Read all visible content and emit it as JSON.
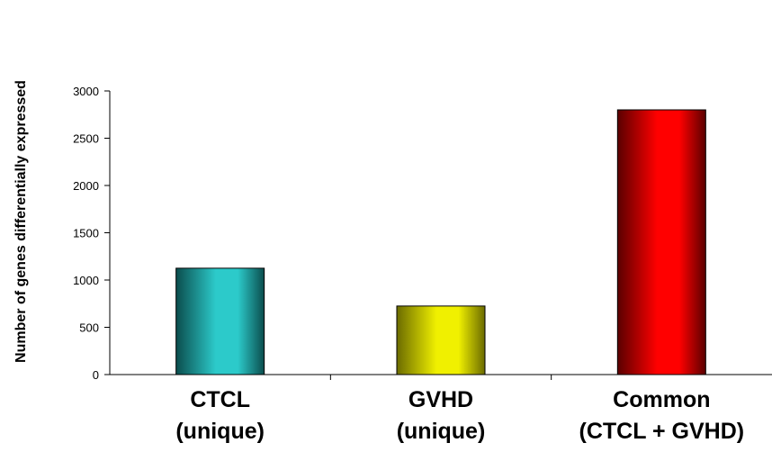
{
  "chart_data": {
    "type": "bar",
    "categories": [
      [
        "CTCL",
        "(unique)"
      ],
      [
        "GVHD",
        "(unique)"
      ],
      [
        "Common",
        "(CTCL + GVHD)"
      ]
    ],
    "values": [
      1125,
      725,
      2800
    ],
    "title": "",
    "xlabel": "",
    "ylabel": "Number of genes differentially expressed",
    "ylim": [
      0,
      3000
    ],
    "yticks": [
      0,
      500,
      1000,
      1500,
      2000,
      2500,
      3000
    ],
    "grid": false,
    "legend": "none",
    "bar_colors": [
      "#2ccaca",
      "#f0f000",
      "#ff0000"
    ],
    "bar_dark_colors": [
      "#0b4d4d",
      "#6b6b00",
      "#5a0000"
    ]
  }
}
